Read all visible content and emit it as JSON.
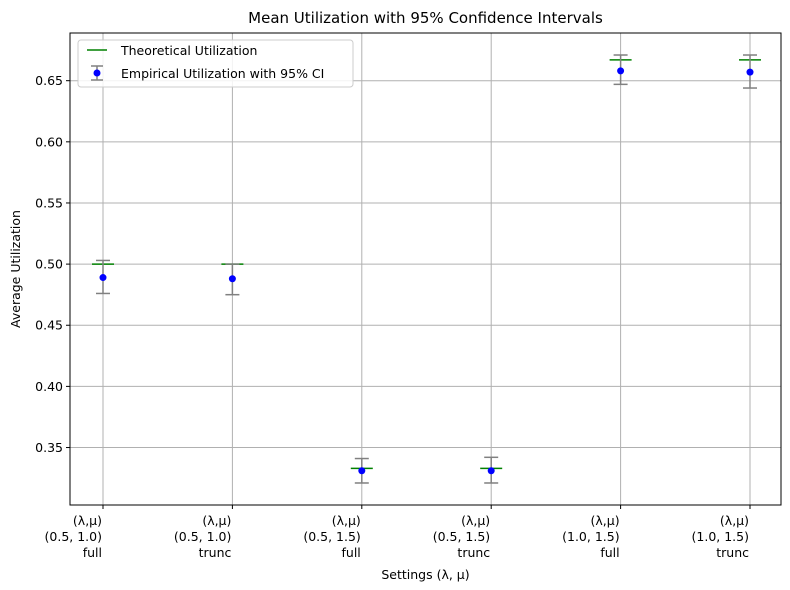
{
  "chart_data": {
    "type": "scatter",
    "title": "Mean Utilization with 95% Confidence Intervals",
    "xlabel": "Settings (λ, μ)",
    "ylabel": "Average Utilization",
    "categories": [
      [
        "(λ,μ)",
        "(0.5, 1.0)",
        "full"
      ],
      [
        "(λ,μ)",
        "(0.5, 1.0)",
        "trunc"
      ],
      [
        "(λ,μ)",
        "(0.5, 1.5)",
        "full"
      ],
      [
        "(λ,μ)",
        "(0.5, 1.5)",
        "trunc"
      ],
      [
        "(λ,μ)",
        "(1.0, 1.5)",
        "full"
      ],
      [
        "(λ,μ)",
        "(1.0, 1.5)",
        "trunc"
      ]
    ],
    "ylim": [
      0.303,
      0.689
    ],
    "yticks": [
      "0.35",
      "0.40",
      "0.45",
      "0.50",
      "0.55",
      "0.60",
      "0.65"
    ],
    "grid": true,
    "legend_position": "top-left",
    "series": [
      {
        "name": "Empirical Utilization with 95% CI",
        "color": "#0000ff",
        "errorbar_color": "#808080",
        "values": [
          0.489,
          0.488,
          0.331,
          0.331,
          0.658,
          0.657
        ],
        "ci_low": [
          0.476,
          0.475,
          0.321,
          0.321,
          0.647,
          0.644
        ],
        "ci_high": [
          0.503,
          0.5,
          0.341,
          0.342,
          0.671,
          0.671
        ]
      },
      {
        "name": "Theoretical Utilization",
        "color": "#008000",
        "values": [
          0.5,
          0.5,
          0.333,
          0.333,
          0.667,
          0.667
        ]
      }
    ]
  }
}
